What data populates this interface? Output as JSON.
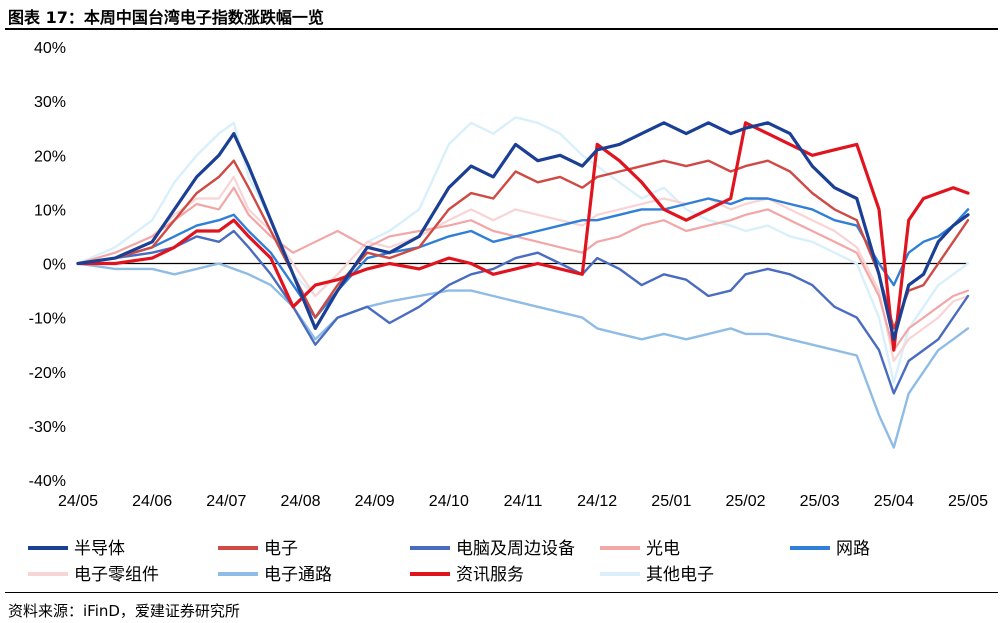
{
  "title": "图表 17：本周中国台湾电子指数涨跌幅一览",
  "source": "资料来源：iFinD，爱建证券研究所",
  "chart_data": {
    "type": "line",
    "title": "本周中国台湾电子指数涨跌幅一览",
    "xlabel": "",
    "ylabel": "",
    "ylim": [
      -40,
      40
    ],
    "yticks": [
      "40%",
      "30%",
      "20%",
      "10%",
      "0%",
      "-10%",
      "-20%",
      "-30%",
      "-40%"
    ],
    "ytick_values": [
      40,
      30,
      20,
      10,
      0,
      -10,
      -20,
      -30,
      -40
    ],
    "xticks": [
      "24/05",
      "24/06",
      "24/07",
      "24/08",
      "24/09",
      "24/10",
      "24/11",
      "24/12",
      "25/01",
      "25/02",
      "25/03",
      "25/04",
      "25/05"
    ],
    "x_unit": "months since 24/05",
    "legend_position": "bottom",
    "series": [
      {
        "name": "半导体",
        "color": "#1a3f94",
        "width": 3.2,
        "x": [
          0,
          0.5,
          1,
          1.3,
          1.6,
          1.9,
          2.1,
          2.3,
          2.6,
          2.9,
          3.2,
          3.5,
          3.9,
          4.2,
          4.6,
          5,
          5.3,
          5.6,
          5.9,
          6.2,
          6.5,
          6.8,
          7,
          7.3,
          7.6,
          7.9,
          8.2,
          8.5,
          8.8,
          9,
          9.3,
          9.6,
          9.9,
          10.2,
          10.5,
          10.8,
          11,
          11.2,
          11.4,
          11.6,
          11.8,
          12
        ],
        "values": [
          0,
          1,
          4,
          10,
          16,
          20,
          24,
          18,
          8,
          -2,
          -12,
          -5,
          3,
          2,
          5,
          14,
          18,
          16,
          22,
          19,
          20,
          18,
          21,
          22,
          24,
          26,
          24,
          26,
          24,
          25,
          26,
          24,
          18,
          14,
          12,
          -2,
          -14,
          -4,
          -2,
          4,
          7,
          9
        ]
      },
      {
        "name": "电子",
        "color": "#cf4a44",
        "width": 2.4,
        "x": [
          0,
          0.5,
          1,
          1.3,
          1.6,
          1.9,
          2.1,
          2.3,
          2.6,
          2.9,
          3.2,
          3.5,
          3.9,
          4.2,
          4.6,
          5,
          5.3,
          5.6,
          5.9,
          6.2,
          6.5,
          6.8,
          7,
          7.3,
          7.6,
          7.9,
          8.2,
          8.5,
          8.8,
          9,
          9.3,
          9.6,
          9.9,
          10.2,
          10.5,
          10.8,
          11,
          11.2,
          11.4,
          11.6,
          11.8,
          12
        ],
        "values": [
          0,
          1,
          3,
          8,
          13,
          16,
          19,
          14,
          6,
          -2,
          -10,
          -4,
          2,
          1,
          3,
          10,
          13,
          12,
          17,
          15,
          16,
          14,
          16,
          17,
          18,
          19,
          18,
          19,
          17,
          18,
          19,
          17,
          13,
          10,
          8,
          -2,
          -12,
          -5,
          -4,
          0,
          4,
          8
        ]
      },
      {
        "name": "电脑及周边设备",
        "color": "#4a6cc0",
        "width": 2.4,
        "x": [
          0,
          0.5,
          1,
          1.3,
          1.6,
          1.9,
          2.1,
          2.3,
          2.6,
          2.9,
          3.2,
          3.5,
          3.9,
          4.2,
          4.6,
          5,
          5.3,
          5.6,
          5.9,
          6.2,
          6.5,
          6.8,
          7,
          7.3,
          7.6,
          7.9,
          8.2,
          8.5,
          8.8,
          9,
          9.3,
          9.6,
          9.9,
          10.2,
          10.5,
          10.8,
          11,
          11.2,
          11.4,
          11.6,
          11.8,
          12
        ],
        "values": [
          0,
          1,
          2,
          3,
          5,
          4,
          6,
          3,
          -2,
          -8,
          -15,
          -10,
          -8,
          -11,
          -8,
          -4,
          -2,
          -1,
          1,
          2,
          0,
          -2,
          1,
          -1,
          -4,
          -2,
          -3,
          -6,
          -5,
          -2,
          -1,
          -2,
          -4,
          -8,
          -10,
          -16,
          -24,
          -18,
          -16,
          -14,
          -10,
          -6
        ]
      },
      {
        "name": "光电",
        "color": "#f2a7a7",
        "width": 2.2,
        "x": [
          0,
          0.5,
          1,
          1.3,
          1.6,
          1.9,
          2.1,
          2.3,
          2.6,
          2.9,
          3.2,
          3.5,
          3.9,
          4.2,
          4.6,
          5,
          5.3,
          5.6,
          5.9,
          6.2,
          6.5,
          6.8,
          7,
          7.3,
          7.6,
          7.9,
          8.2,
          8.5,
          8.8,
          9,
          9.3,
          9.6,
          9.9,
          10.2,
          10.5,
          10.8,
          11,
          11.2,
          11.4,
          11.6,
          11.8,
          12
        ],
        "values": [
          0,
          2,
          5,
          8,
          11,
          10,
          14,
          9,
          5,
          2,
          4,
          6,
          3,
          5,
          6,
          7,
          8,
          6,
          5,
          4,
          3,
          2,
          4,
          5,
          7,
          8,
          6,
          7,
          8,
          9,
          10,
          8,
          6,
          4,
          2,
          -6,
          -16,
          -12,
          -10,
          -8,
          -6,
          -5
        ]
      },
      {
        "name": "网路",
        "color": "#2f7fd6",
        "width": 2.4,
        "x": [
          0,
          0.5,
          1,
          1.3,
          1.6,
          1.9,
          2.1,
          2.3,
          2.6,
          2.9,
          3.2,
          3.5,
          3.9,
          4.2,
          4.6,
          5,
          5.3,
          5.6,
          5.9,
          6.2,
          6.5,
          6.8,
          7,
          7.3,
          7.6,
          7.9,
          8.2,
          8.5,
          8.8,
          9,
          9.3,
          9.6,
          9.9,
          10.2,
          10.5,
          10.8,
          11,
          11.2,
          11.4,
          11.6,
          11.8,
          12
        ],
        "values": [
          0,
          1,
          3,
          5,
          7,
          8,
          9,
          6,
          2,
          -4,
          -10,
          -5,
          1,
          2,
          3,
          5,
          6,
          4,
          5,
          6,
          7,
          8,
          8,
          9,
          10,
          10,
          11,
          12,
          11,
          12,
          12,
          11,
          10,
          8,
          7,
          0,
          -4,
          2,
          4,
          5,
          7,
          10
        ]
      },
      {
        "name": "电子零组件",
        "color": "#f9d4d4",
        "width": 2.2,
        "x": [
          0,
          0.5,
          1,
          1.3,
          1.6,
          1.9,
          2.1,
          2.3,
          2.6,
          2.9,
          3.2,
          3.5,
          3.9,
          4.2,
          4.6,
          5,
          5.3,
          5.6,
          5.9,
          6.2,
          6.5,
          6.8,
          7,
          7.3,
          7.6,
          7.9,
          8.2,
          8.5,
          8.8,
          9,
          9.3,
          9.6,
          9.9,
          10.2,
          10.5,
          10.8,
          11,
          11.2,
          11.4,
          11.6,
          11.8,
          12
        ],
        "values": [
          0,
          2,
          5,
          9,
          12,
          12,
          16,
          10,
          6,
          0,
          -6,
          -2,
          4,
          3,
          5,
          8,
          10,
          8,
          10,
          9,
          8,
          7,
          9,
          10,
          11,
          12,
          11,
          12,
          10,
          11,
          12,
          10,
          8,
          6,
          3,
          -5,
          -18,
          -14,
          -12,
          -10,
          -7,
          -6
        ]
      },
      {
        "name": "电子通路",
        "color": "#8fbce6",
        "width": 2.4,
        "x": [
          0,
          0.5,
          1,
          1.3,
          1.6,
          1.9,
          2.1,
          2.3,
          2.6,
          2.9,
          3.2,
          3.5,
          3.9,
          4.2,
          4.6,
          5,
          5.3,
          5.6,
          5.9,
          6.2,
          6.5,
          6.8,
          7,
          7.3,
          7.6,
          7.9,
          8.2,
          8.5,
          8.8,
          9,
          9.3,
          9.6,
          9.9,
          10.2,
          10.5,
          10.8,
          11,
          11.2,
          11.4,
          11.6,
          11.8,
          12
        ],
        "values": [
          0,
          -1,
          -1,
          -2,
          -1,
          0,
          -1,
          -2,
          -4,
          -8,
          -14,
          -10,
          -8,
          -7,
          -6,
          -5,
          -5,
          -6,
          -7,
          -8,
          -9,
          -10,
          -12,
          -13,
          -14,
          -13,
          -14,
          -13,
          -12,
          -13,
          -13,
          -14,
          -15,
          -16,
          -17,
          -28,
          -34,
          -24,
          -20,
          -16,
          -14,
          -12
        ]
      },
      {
        "name": "资讯服务",
        "color": "#e0141e",
        "width": 3.2,
        "x": [
          0,
          0.5,
          1,
          1.3,
          1.6,
          1.9,
          2.1,
          2.3,
          2.6,
          2.9,
          3.2,
          3.5,
          3.9,
          4.2,
          4.6,
          5,
          5.3,
          5.6,
          5.9,
          6.2,
          6.5,
          6.8,
          7,
          7.3,
          7.6,
          7.9,
          8.2,
          8.5,
          8.8,
          9,
          9.3,
          9.6,
          9.9,
          10.2,
          10.5,
          10.8,
          11,
          11.2,
          11.4,
          11.6,
          11.8,
          12
        ],
        "values": [
          0,
          0,
          1,
          3,
          6,
          6,
          8,
          5,
          1,
          -8,
          -4,
          -3,
          -1,
          0,
          -1,
          1,
          0,
          -2,
          -1,
          0,
          -1,
          -2,
          22,
          19,
          15,
          10,
          8,
          10,
          12,
          26,
          24,
          22,
          20,
          21,
          22,
          10,
          -16,
          8,
          12,
          13,
          14,
          13
        ]
      },
      {
        "name": "其他电子",
        "color": "#d9f0fb",
        "width": 2.4,
        "x": [
          0,
          0.5,
          1,
          1.3,
          1.6,
          1.9,
          2.1,
          2.3,
          2.6,
          2.9,
          3.2,
          3.5,
          3.9,
          4.2,
          4.6,
          5,
          5.3,
          5.6,
          5.9,
          6.2,
          6.5,
          6.8,
          7,
          7.3,
          7.6,
          7.9,
          8.2,
          8.5,
          8.8,
          9,
          9.3,
          9.6,
          9.9,
          10.2,
          10.5,
          10.8,
          11,
          11.2,
          11.4,
          11.6,
          11.8,
          12
        ],
        "values": [
          0,
          3,
          8,
          15,
          20,
          24,
          26,
          16,
          8,
          -2,
          -6,
          -2,
          4,
          6,
          10,
          22,
          26,
          24,
          27,
          26,
          24,
          20,
          18,
          15,
          12,
          14,
          10,
          8,
          7,
          6,
          7,
          5,
          4,
          2,
          0,
          -10,
          -22,
          -12,
          -8,
          -4,
          -2,
          0
        ]
      }
    ]
  }
}
